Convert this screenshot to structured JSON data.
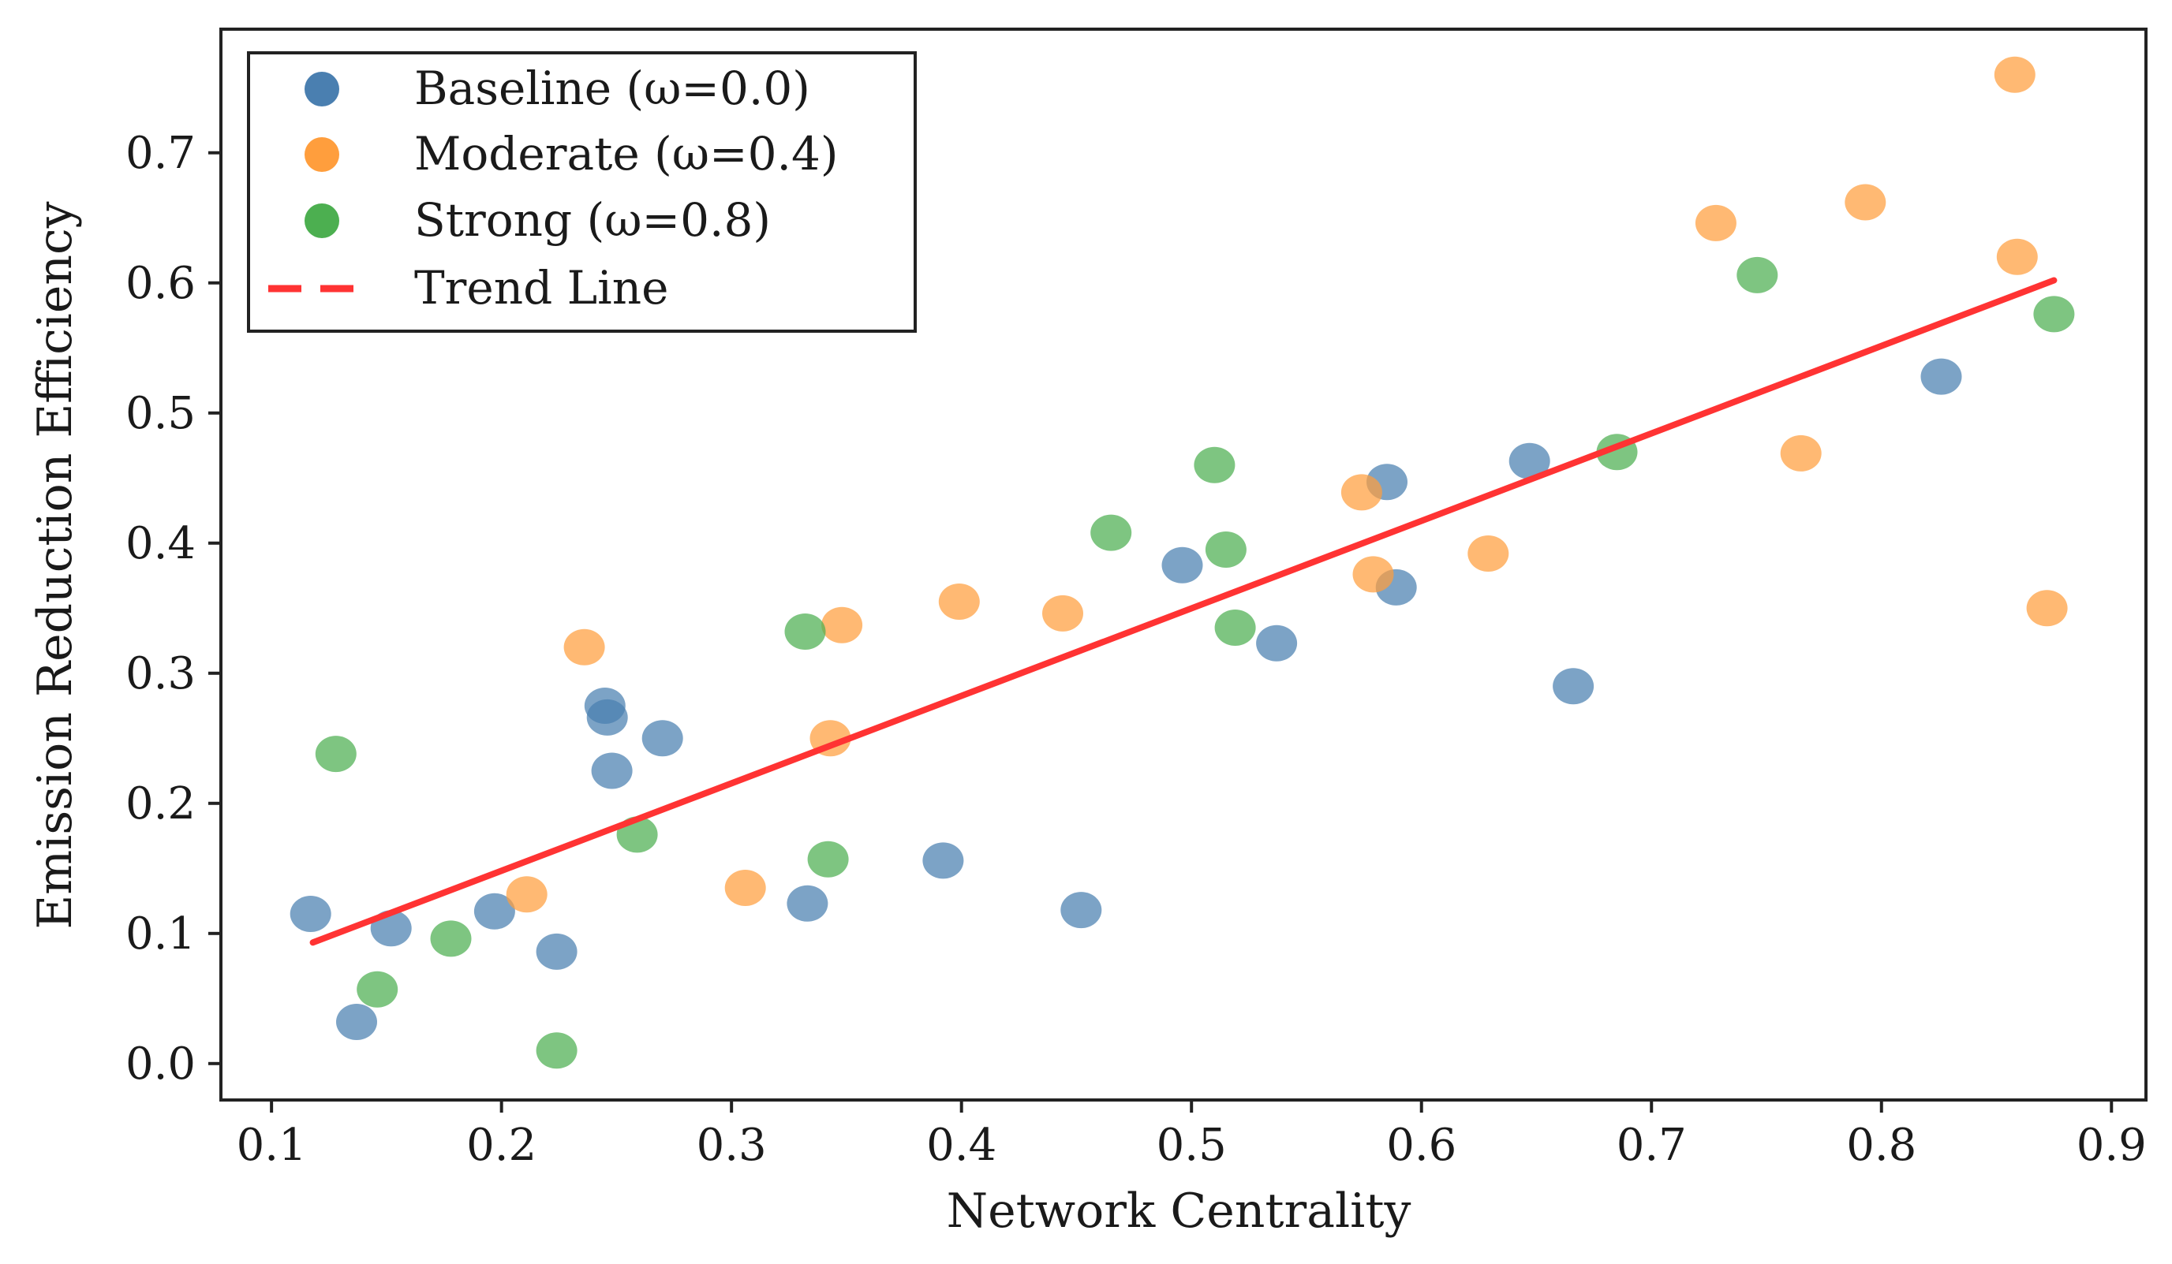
{
  "chart_data": {
    "type": "scatter",
    "title": "",
    "xlabel": "Network Centrality",
    "ylabel": "Emission Reduction Efficiency",
    "xlim": [
      0.078,
      0.915
    ],
    "ylim": [
      -0.028,
      0.795
    ],
    "xticks": [
      "0.1",
      "0.2",
      "0.3",
      "0.4",
      "0.5",
      "0.6",
      "0.7",
      "0.8",
      "0.9"
    ],
    "yticks": [
      "0.0",
      "0.1",
      "0.2",
      "0.3",
      "0.4",
      "0.5",
      "0.6",
      "0.7"
    ],
    "grid": false,
    "legend_position": "top-left",
    "series": [
      {
        "name": "Baseline (ω=0.0)",
        "color": "#4a7fb0",
        "points": [
          [
            0.117,
            0.115
          ],
          [
            0.137,
            0.032
          ],
          [
            0.152,
            0.104
          ],
          [
            0.197,
            0.117
          ],
          [
            0.224,
            0.086
          ],
          [
            0.245,
            0.275
          ],
          [
            0.246,
            0.266
          ],
          [
            0.248,
            0.225
          ],
          [
            0.27,
            0.25
          ],
          [
            0.333,
            0.123
          ],
          [
            0.392,
            0.156
          ],
          [
            0.452,
            0.118
          ],
          [
            0.496,
            0.383
          ],
          [
            0.537,
            0.323
          ],
          [
            0.585,
            0.447
          ],
          [
            0.589,
            0.366
          ],
          [
            0.647,
            0.463
          ],
          [
            0.666,
            0.29
          ],
          [
            0.826,
            0.528
          ]
        ]
      },
      {
        "name": "Moderate (ω=0.4)",
        "color": "#ff9e3d",
        "points": [
          [
            0.211,
            0.13
          ],
          [
            0.236,
            0.32
          ],
          [
            0.306,
            0.135
          ],
          [
            0.343,
            0.25
          ],
          [
            0.348,
            0.337
          ],
          [
            0.399,
            0.355
          ],
          [
            0.444,
            0.346
          ],
          [
            0.574,
            0.439
          ],
          [
            0.579,
            0.376
          ],
          [
            0.629,
            0.392
          ],
          [
            0.728,
            0.646
          ],
          [
            0.765,
            0.469
          ],
          [
            0.793,
            0.662
          ],
          [
            0.858,
            0.76
          ],
          [
            0.859,
            0.62
          ],
          [
            0.872,
            0.35
          ]
        ]
      },
      {
        "name": "Strong (ω=0.8)",
        "color": "#4caf50",
        "points": [
          [
            0.128,
            0.238
          ],
          [
            0.146,
            0.057
          ],
          [
            0.178,
            0.096
          ],
          [
            0.224,
            0.01
          ],
          [
            0.259,
            0.176
          ],
          [
            0.332,
            0.332
          ],
          [
            0.342,
            0.157
          ],
          [
            0.465,
            0.408
          ],
          [
            0.51,
            0.46
          ],
          [
            0.515,
            0.395
          ],
          [
            0.519,
            0.335
          ],
          [
            0.685,
            0.47
          ],
          [
            0.746,
            0.606
          ],
          [
            0.875,
            0.576
          ]
        ]
      }
    ],
    "trend_line": {
      "name": "Trend Line",
      "color": "#ff3333",
      "style": "dashed",
      "x": [
        0.118,
        0.875
      ],
      "y": [
        0.093,
        0.602
      ]
    }
  }
}
